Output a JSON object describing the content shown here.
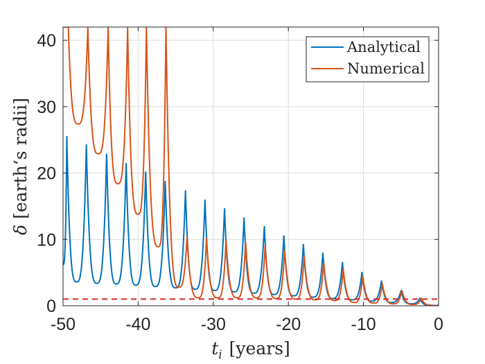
{
  "chart_data": {
    "type": "line",
    "xlabel_var": "t",
    "xlabel_sub": "i",
    "xlabel_unit": "[years]",
    "ylabel_var": "δ",
    "ylabel_unit": "[earth‘s radii]",
    "xlim": [
      -50,
      0
    ],
    "ylim": [
      0,
      42
    ],
    "xticks": [
      -50,
      -40,
      -30,
      -20,
      -10,
      0
    ],
    "yticks": [
      0,
      10,
      20,
      30,
      40
    ],
    "grid": true,
    "legend_position": "top-right",
    "threshold": {
      "y": 1,
      "color": "#d62728",
      "style": "dashed"
    },
    "series": [
      {
        "name": "Analytical",
        "color": "#0072BD",
        "start": [
          -50,
          6.2
        ],
        "end": [
          0,
          0.05
        ],
        "peaks": [
          [
            -49.5,
            25.6
          ],
          [
            -46.9,
            24.3
          ],
          [
            -44.2,
            22.9
          ],
          [
            -41.6,
            21.5
          ],
          [
            -39.0,
            20.2
          ],
          [
            -36.4,
            18.8
          ],
          [
            -33.7,
            17.4
          ],
          [
            -31.1,
            16.0
          ],
          [
            -28.5,
            14.7
          ],
          [
            -25.9,
            13.3
          ],
          [
            -23.2,
            12.0
          ],
          [
            -20.6,
            10.6
          ],
          [
            -18.0,
            9.3
          ],
          [
            -15.4,
            8.0
          ],
          [
            -12.8,
            6.6
          ],
          [
            -10.2,
            5.1
          ],
          [
            -7.6,
            3.8
          ],
          [
            -5.0,
            2.3
          ],
          [
            -2.5,
            1.1
          ]
        ],
        "valleys": [
          [
            -48.2,
            3.6
          ],
          [
            -45.5,
            3.4
          ],
          [
            -42.9,
            3.3
          ],
          [
            -40.3,
            3.1
          ],
          [
            -37.7,
            2.9
          ],
          [
            -35.0,
            2.7
          ],
          [
            -32.4,
            2.5
          ],
          [
            -29.8,
            2.3
          ],
          [
            -27.2,
            2.1
          ],
          [
            -24.6,
            1.9
          ],
          [
            -21.9,
            1.7
          ],
          [
            -19.3,
            1.5
          ],
          [
            -16.7,
            1.3
          ],
          [
            -14.1,
            1.1
          ],
          [
            -11.5,
            0.9
          ],
          [
            -8.9,
            0.7
          ],
          [
            -6.3,
            0.5
          ],
          [
            -3.7,
            0.3
          ],
          [
            -1.2,
            0.1
          ]
        ]
      },
      {
        "name": "Numerical",
        "color": "#D95319",
        "start": [
          -50,
          42
        ],
        "end": [
          0,
          0.0
        ],
        "peaks": [
          [
            -49.3,
            42
          ],
          [
            -46.7,
            42
          ],
          [
            -44.0,
            42
          ],
          [
            -41.4,
            42
          ],
          [
            -38.9,
            42
          ],
          [
            -36.3,
            42
          ],
          [
            -33.5,
            10.4
          ],
          [
            -30.9,
            10.2
          ],
          [
            -28.3,
            9.9
          ],
          [
            -25.7,
            9.6
          ],
          [
            -23.1,
            9.0
          ],
          [
            -20.5,
            8.4
          ],
          [
            -17.9,
            7.5
          ],
          [
            -15.3,
            6.6
          ],
          [
            -12.7,
            5.6
          ],
          [
            -10.1,
            4.5
          ],
          [
            -7.5,
            3.4
          ],
          [
            -4.9,
            2.4
          ],
          [
            -2.3,
            1.1
          ]
        ],
        "valleys": [
          [
            -48.0,
            27.4
          ],
          [
            -45.3,
            22.9
          ],
          [
            -42.7,
            18.4
          ],
          [
            -40.0,
            13.8
          ],
          [
            -37.3,
            8.9
          ],
          [
            -34.6,
            2.8
          ],
          [
            -32.0,
            1.2
          ],
          [
            -29.4,
            1.2
          ],
          [
            -26.8,
            1.2
          ],
          [
            -24.2,
            1.2
          ],
          [
            -21.6,
            1.1
          ],
          [
            -19.0,
            1.0
          ],
          [
            -16.4,
            0.9
          ],
          [
            -13.8,
            0.8
          ],
          [
            -11.2,
            0.5
          ],
          [
            -8.6,
            0.4
          ],
          [
            -6.0,
            0.3
          ],
          [
            -3.4,
            0.2
          ],
          [
            -0.8,
            0.05
          ]
        ]
      }
    ]
  }
}
